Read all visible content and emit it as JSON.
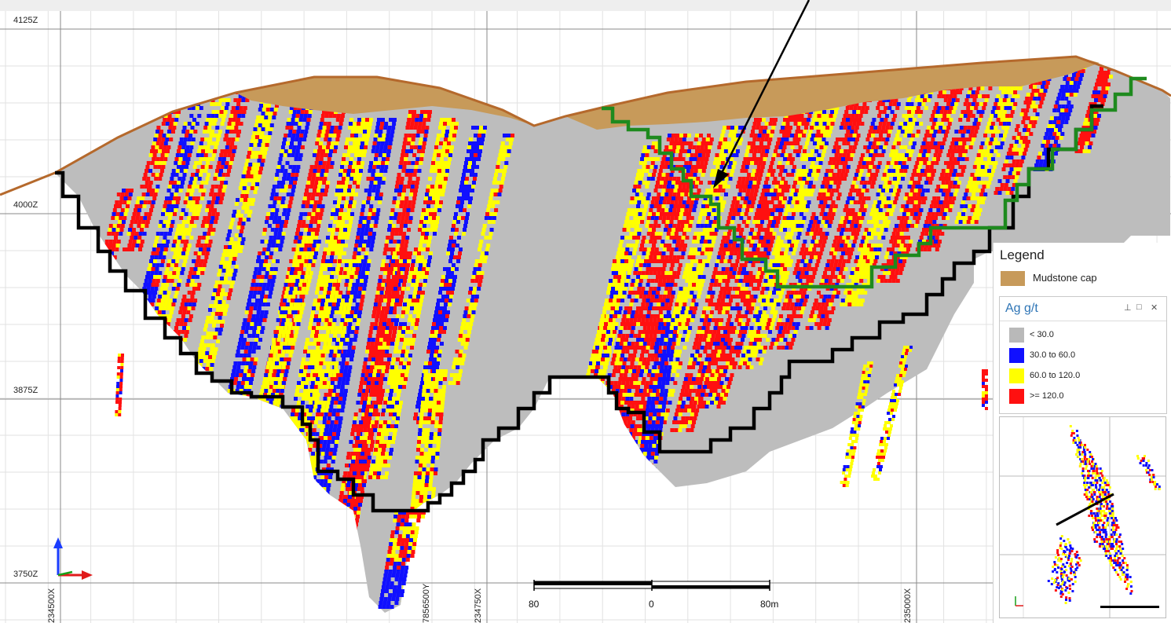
{
  "section": {
    "elevation_labels": [
      "4125Z",
      "4000Z",
      "3875Z",
      "3750Z"
    ],
    "coordinate_labels": [
      "234500X",
      "7856500Y",
      "234750X",
      "235000X"
    ],
    "scale_bar": {
      "left_label": "80",
      "center_label": "0",
      "right_label": "80m"
    }
  },
  "legend": {
    "title": "Legend",
    "mudstone": {
      "label": "Mudstone cap",
      "color": "#c79a5a"
    },
    "ag_panel": {
      "title": "Ag g/t",
      "pin_glyph": "⊥",
      "maximize_glyph": "□",
      "close_glyph": "✕",
      "bins": [
        {
          "label": "< 30.0",
          "color": "#b9b9b9"
        },
        {
          "label": "30.0 to 60.0",
          "color": "#1010ff"
        },
        {
          "label": "60.0 to 120.0",
          "color": "#ffff00"
        },
        {
          "label": ">= 120.0",
          "color": "#ff1010"
        }
      ]
    }
  },
  "colors": {
    "grid": "#9a9a9a",
    "fine_grid": "#dddddd",
    "pit_shell": "#000000",
    "underground": "#1e8a1e",
    "topography": "#b5692c",
    "waste": "#bdbdbd"
  },
  "icons": [
    "axis-triad-icon",
    "pin-icon",
    "maximize-icon",
    "close-icon",
    "pointer-arrow-icon"
  ]
}
